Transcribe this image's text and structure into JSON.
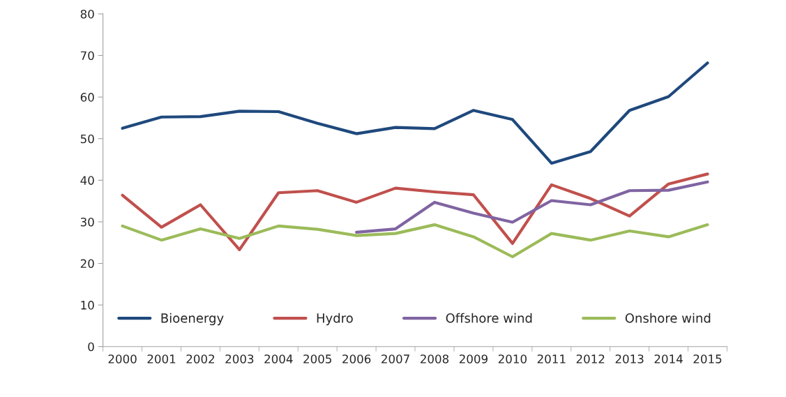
{
  "chart_data": {
    "type": "line",
    "categories": [
      "2000",
      "2001",
      "2002",
      "2003",
      "2004",
      "2005",
      "2006",
      "2007",
      "2008",
      "2009",
      "2010",
      "2011",
      "2012",
      "2013",
      "2014",
      "2015"
    ],
    "series": [
      {
        "name": "Bioenergy",
        "color": "#1f497d",
        "values": [
          52.5,
          55.2,
          55.3,
          56.6,
          56.5,
          53.7,
          51.2,
          52.7,
          52.4,
          56.8,
          54.6,
          44.1,
          46.9,
          56.8,
          60.1,
          68.2
        ]
      },
      {
        "name": "Hydro",
        "color": "#c0504d",
        "values": [
          36.4,
          28.7,
          34.1,
          23.3,
          37.0,
          37.5,
          34.7,
          38.1,
          37.2,
          36.5,
          24.8,
          38.9,
          35.6,
          31.4,
          39.1,
          41.5
        ]
      },
      {
        "name": "Offshore wind",
        "color": "#8064a2",
        "values": [
          null,
          null,
          null,
          null,
          null,
          null,
          27.5,
          28.3,
          34.7,
          32.1,
          29.9,
          35.1,
          34.1,
          37.5,
          37.6,
          39.6
        ]
      },
      {
        "name": "Onshore wind",
        "color": "#9bbb59",
        "values": [
          29.0,
          25.6,
          28.3,
          26.0,
          29.0,
          28.2,
          26.7,
          27.2,
          29.3,
          26.4,
          21.6,
          27.2,
          25.6,
          27.8,
          26.4,
          29.3
        ]
      }
    ],
    "ylim": [
      0,
      80
    ],
    "yticks": [
      0,
      10,
      20,
      30,
      40,
      50,
      60,
      70,
      80
    ],
    "grid": false,
    "legend": "bottom",
    "marker": "none",
    "line_style": "solid"
  }
}
